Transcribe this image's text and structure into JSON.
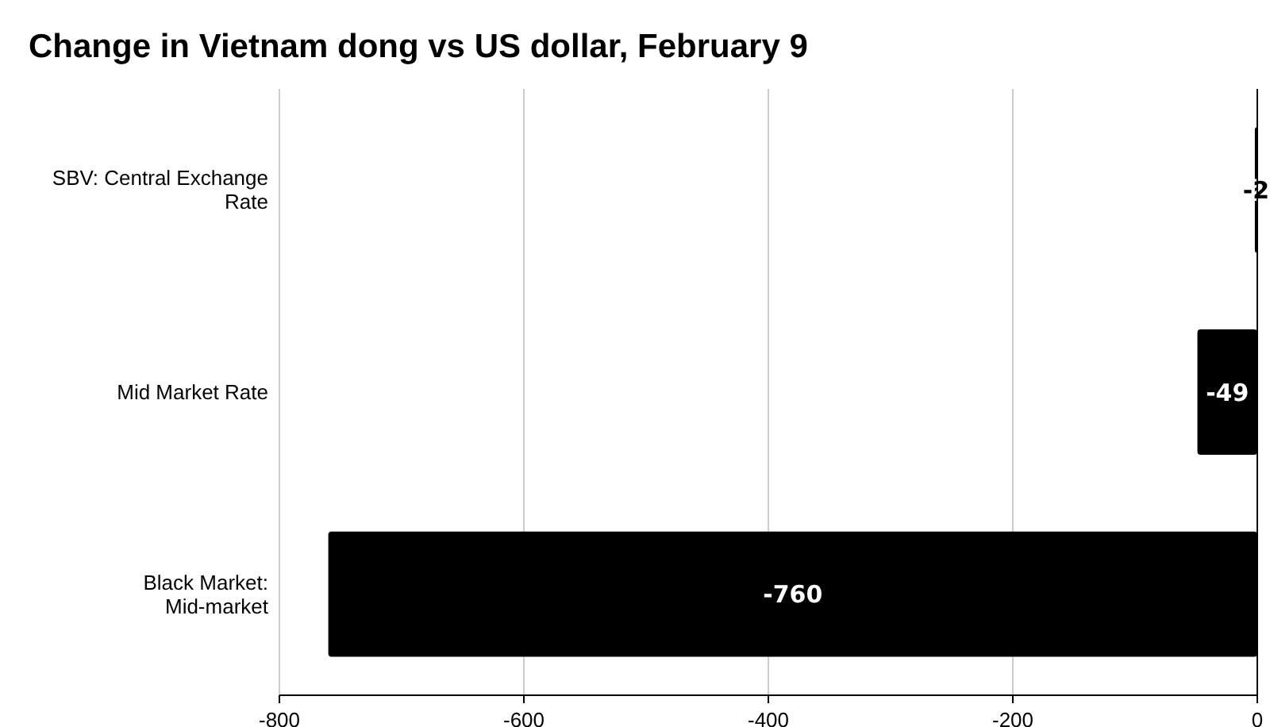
{
  "chart_data": {
    "type": "bar",
    "orientation": "horizontal",
    "title": "Change in Vietnam dong vs US dollar, February 9",
    "categories": [
      "SBV: Central Exchange Rate",
      "Mid Market Rate",
      "Black Market: Mid-market"
    ],
    "values": [
      -2,
      -49,
      -760
    ],
    "color": "#000000",
    "xlim": [
      -800,
      0
    ],
    "xticks": [
      -800,
      -600,
      -400,
      -200,
      0
    ],
    "grid": "x",
    "data_labels": true
  }
}
